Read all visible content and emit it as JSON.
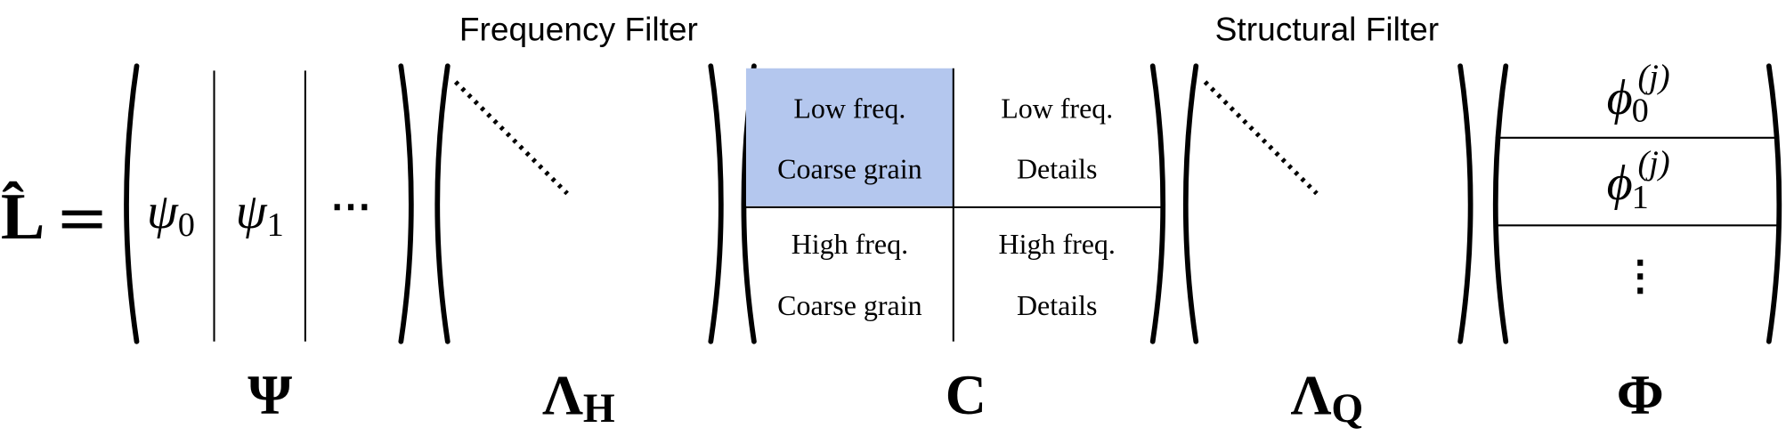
{
  "lhs": {
    "symbol": "L̂",
    "equals": "="
  },
  "psi": {
    "columns": [
      {
        "symbol": "ψ",
        "subscript": "0"
      },
      {
        "symbol": "ψ",
        "subscript": "1"
      }
    ],
    "ellipsis": "⋯",
    "label": "Ψ"
  },
  "lambda_h": {
    "title": "Frequency Filter",
    "label": {
      "symbol": "Λ",
      "subscript": "H"
    }
  },
  "c": {
    "cells": [
      [
        "Low freq.",
        "Coarse grain"
      ],
      [
        "Low freq.",
        "Details"
      ],
      [
        "High freq.",
        "Coarse grain"
      ],
      [
        "High freq.",
        "Details"
      ]
    ],
    "label": "C"
  },
  "lambda_q": {
    "title": "Structural Filter",
    "label": {
      "symbol": "Λ",
      "subscript": "Q"
    }
  },
  "phi": {
    "rows": [
      {
        "symbol": "ϕ",
        "superscript": "(j)",
        "subscript": "0"
      },
      {
        "symbol": "ϕ",
        "superscript": "(j)",
        "subscript": "1"
      }
    ],
    "ellipsis": "⋮",
    "label": "Φ"
  }
}
